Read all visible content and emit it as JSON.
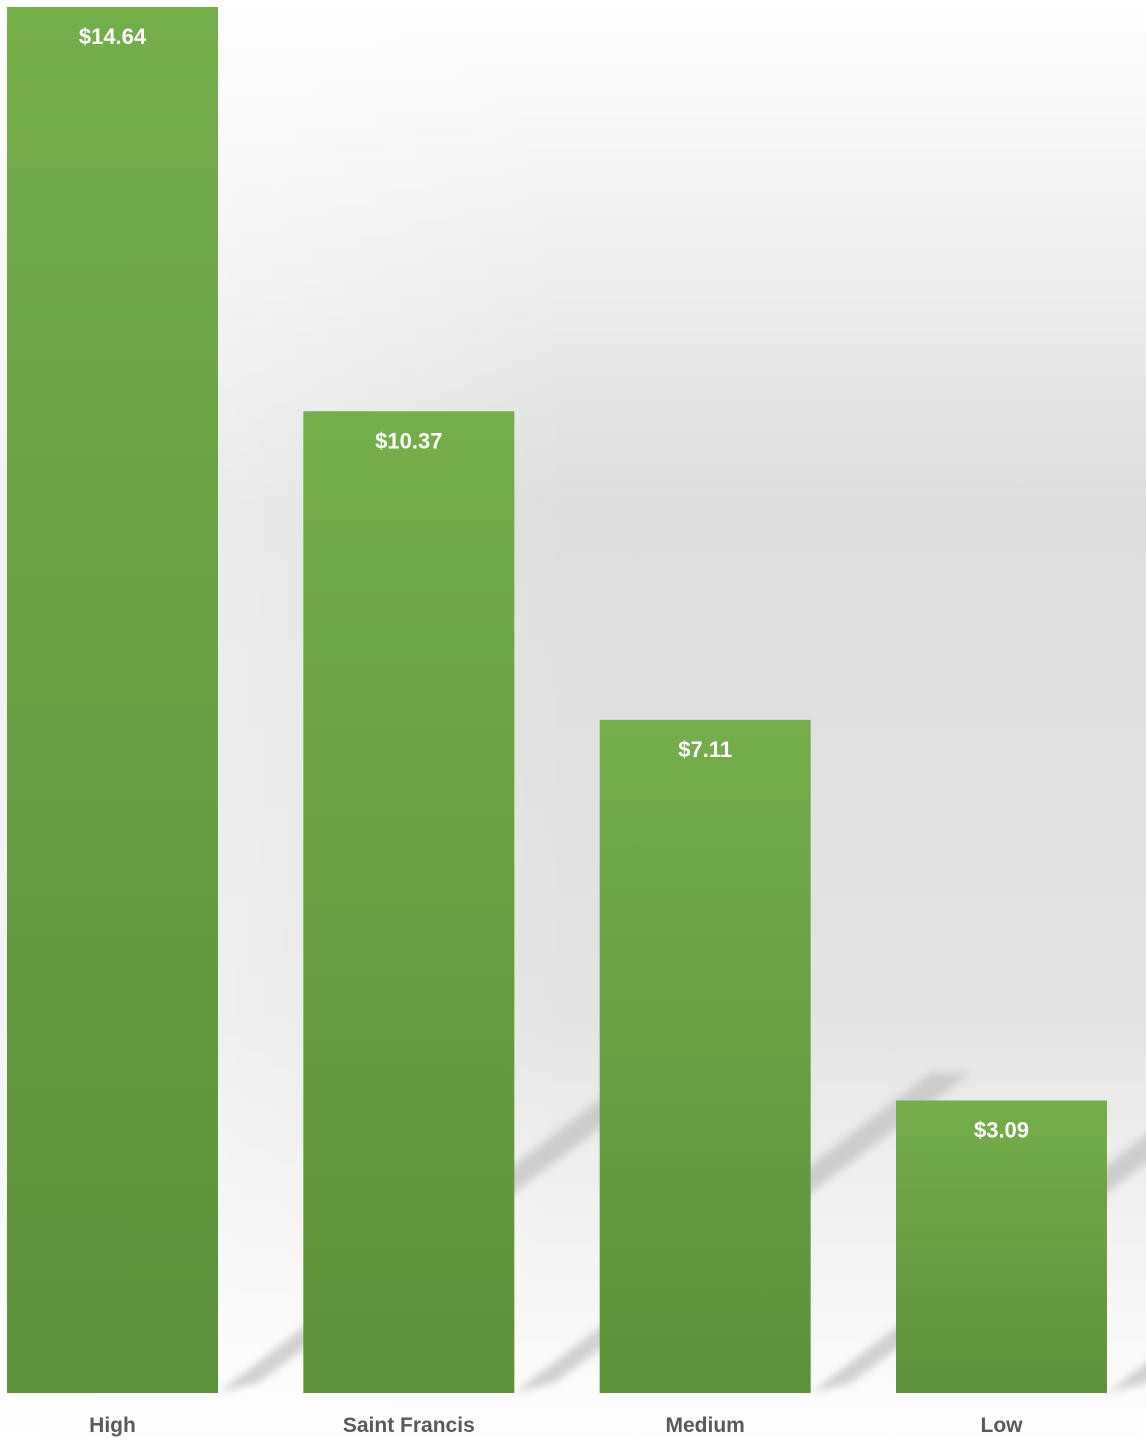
{
  "chart_data": {
    "type": "bar",
    "categories": [
      "High",
      "Saint Francis",
      "Medium",
      "Low"
    ],
    "values": [
      14.64,
      10.37,
      7.11,
      3.09
    ],
    "data_labels": [
      "$14.64",
      "$10.37",
      "$7.11",
      "$3.09"
    ],
    "ylim": [
      0,
      14.64
    ],
    "grid": false,
    "legend": "none",
    "colors": {
      "bar_top": "#74ae4a",
      "bar_bottom": "#5d913a",
      "label_text": "#ffffff",
      "category_text": "#595959",
      "background_top": "#ffffff",
      "background_mid": "#d9d9d9",
      "shadow": "#bfbfbf"
    }
  }
}
